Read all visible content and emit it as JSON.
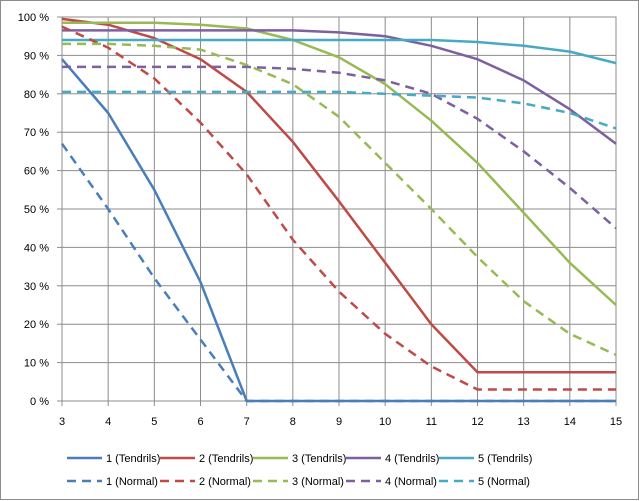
{
  "chart_data": {
    "type": "line",
    "title": "",
    "xlabel": "",
    "ylabel": "",
    "x": [
      3,
      4,
      5,
      6,
      7,
      8,
      9,
      10,
      11,
      12,
      13,
      14,
      15
    ],
    "xlim": [
      3,
      15
    ],
    "ylim": [
      0,
      100
    ],
    "ytick_format": "percent",
    "grid": true,
    "legend_placement": "bottom",
    "series": [
      {
        "name": "1 (Tendrils)",
        "color": "#4a7ebb",
        "dash": false,
        "values": [
          89,
          75,
          55,
          31,
          0,
          0,
          0,
          0,
          0,
          0,
          0,
          0,
          0
        ]
      },
      {
        "name": "2 (Tendrils)",
        "color": "#be4b48",
        "dash": false,
        "values": [
          99.5,
          98,
          94.5,
          89,
          80.5,
          67.5,
          52,
          36,
          20,
          7.5,
          7.5,
          7.5,
          7.5
        ]
      },
      {
        "name": "3 (Tendrils)",
        "color": "#98b954",
        "dash": false,
        "values": [
          98.5,
          98.5,
          98.5,
          98,
          97,
          94,
          89.5,
          82.5,
          73,
          62,
          49,
          36,
          25
        ]
      },
      {
        "name": "4 (Tendrils)",
        "color": "#7d60a0",
        "dash": false,
        "values": [
          96.5,
          96.5,
          96.5,
          96.5,
          96.5,
          96.5,
          96,
          95,
          92.5,
          89,
          83.5,
          76,
          67
        ]
      },
      {
        "name": "5 (Tendrils)",
        "color": "#46aac5",
        "dash": false,
        "values": [
          94,
          94,
          94,
          94,
          94,
          94,
          94,
          94,
          94,
          93.5,
          92.5,
          91,
          88
        ]
      },
      {
        "name": "1 (Normal)",
        "color": "#4a7ebb",
        "dash": true,
        "values": [
          67,
          50,
          32,
          16,
          0,
          0,
          0,
          0,
          0,
          0,
          0,
          0,
          0
        ]
      },
      {
        "name": "2 (Normal)",
        "color": "#be4b48",
        "dash": true,
        "values": [
          97.5,
          92,
          84,
          72.5,
          59,
          42,
          28.5,
          17.5,
          9,
          3,
          3,
          3,
          3
        ]
      },
      {
        "name": "3 (Normal)",
        "color": "#98b954",
        "dash": true,
        "values": [
          93,
          93,
          92.5,
          91.5,
          87.5,
          82.5,
          74,
          62,
          50,
          37.5,
          26,
          17.5,
          12
        ]
      },
      {
        "name": "4 (Normal)",
        "color": "#7d60a0",
        "dash": true,
        "values": [
          87,
          87,
          87,
          87,
          87,
          86.5,
          85.5,
          83.5,
          80,
          73.5,
          65,
          55.5,
          45
        ]
      },
      {
        "name": "5 (Normal)",
        "color": "#46aac5",
        "dash": true,
        "values": [
          80.5,
          80.5,
          80.5,
          80.5,
          80.5,
          80.5,
          80.5,
          80,
          79.5,
          79,
          77.5,
          75,
          71
        ]
      }
    ],
    "legend": {
      "rows": [
        [
          "1 (Tendrils)",
          "2 (Tendrils)",
          "3 (Tendrils)",
          "4 (Tendrils)",
          "5 (Tendrils)"
        ],
        [
          "1 (Normal)",
          "2 (Normal)",
          "3 (Normal)",
          "4 (Normal)",
          "5 (Normal)"
        ]
      ]
    }
  }
}
